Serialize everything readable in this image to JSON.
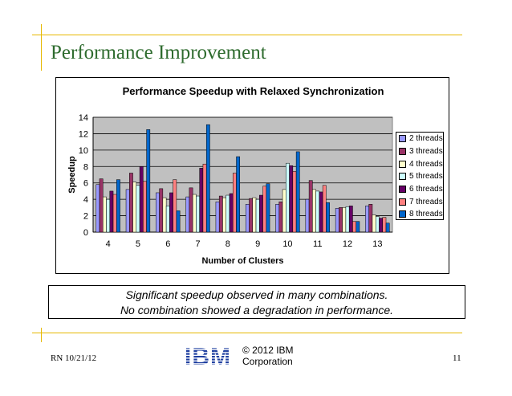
{
  "slide": {
    "title": "Performance Improvement",
    "callout_line1": "Significant speedup observed in many combinations.",
    "callout_line2": "No combination showed a degradation in performance.",
    "footer_left": "RN 10/21/12",
    "footer_copyright_line1": "© 2012 IBM",
    "footer_copyright_line2": "Corporation",
    "page_number": "11",
    "logo_text": "IBM"
  },
  "chart_data": {
    "type": "bar",
    "title": "Performance Speedup with Relaxed Synchronization",
    "xlabel": "Number of Clusters",
    "ylabel": "Speedup",
    "ylim": [
      0,
      14
    ],
    "yticks": [
      0,
      2,
      4,
      6,
      8,
      10,
      12,
      14
    ],
    "grid": true,
    "legend_position": "right",
    "categories": [
      "4",
      "5",
      "6",
      "7",
      "8",
      "9",
      "10",
      "11",
      "12",
      "13"
    ],
    "series": [
      {
        "name": "2 threads",
        "color": "#9999ff",
        "values": [
          5.8,
          5.2,
          4.8,
          4.3,
          3.7,
          3.4,
          3.4,
          4.0,
          2.9,
          3.2
        ]
      },
      {
        "name": "3 threads",
        "color": "#993366",
        "values": [
          6.5,
          7.2,
          5.3,
          5.4,
          4.4,
          4.1,
          3.7,
          6.3,
          3.0,
          3.4
        ]
      },
      {
        "name": "4 threads",
        "color": "#ffffcc",
        "values": [
          4.3,
          6.1,
          4.2,
          4.6,
          4.2,
          4.2,
          5.2,
          5.2,
          3.0,
          2.1
        ]
      },
      {
        "name": "5 threads",
        "color": "#ccffff",
        "values": [
          4.0,
          5.7,
          3.2,
          4.4,
          4.5,
          4.0,
          8.4,
          5.0,
          3.1,
          1.9
        ]
      },
      {
        "name": "6 threads",
        "color": "#660066",
        "values": [
          5.0,
          8.0,
          4.8,
          7.8,
          4.7,
          4.5,
          8.1,
          4.9,
          3.2,
          1.7
        ]
      },
      {
        "name": "7 threads",
        "color": "#ff8080",
        "values": [
          4.6,
          6.2,
          6.4,
          8.3,
          7.2,
          5.6,
          7.4,
          5.7,
          1.3,
          1.8
        ]
      },
      {
        "name": "8 threads",
        "color": "#0066cc",
        "values": [
          6.4,
          12.5,
          2.6,
          13.1,
          9.2,
          5.9,
          9.8,
          3.6,
          1.3,
          1.1
        ]
      }
    ]
  }
}
